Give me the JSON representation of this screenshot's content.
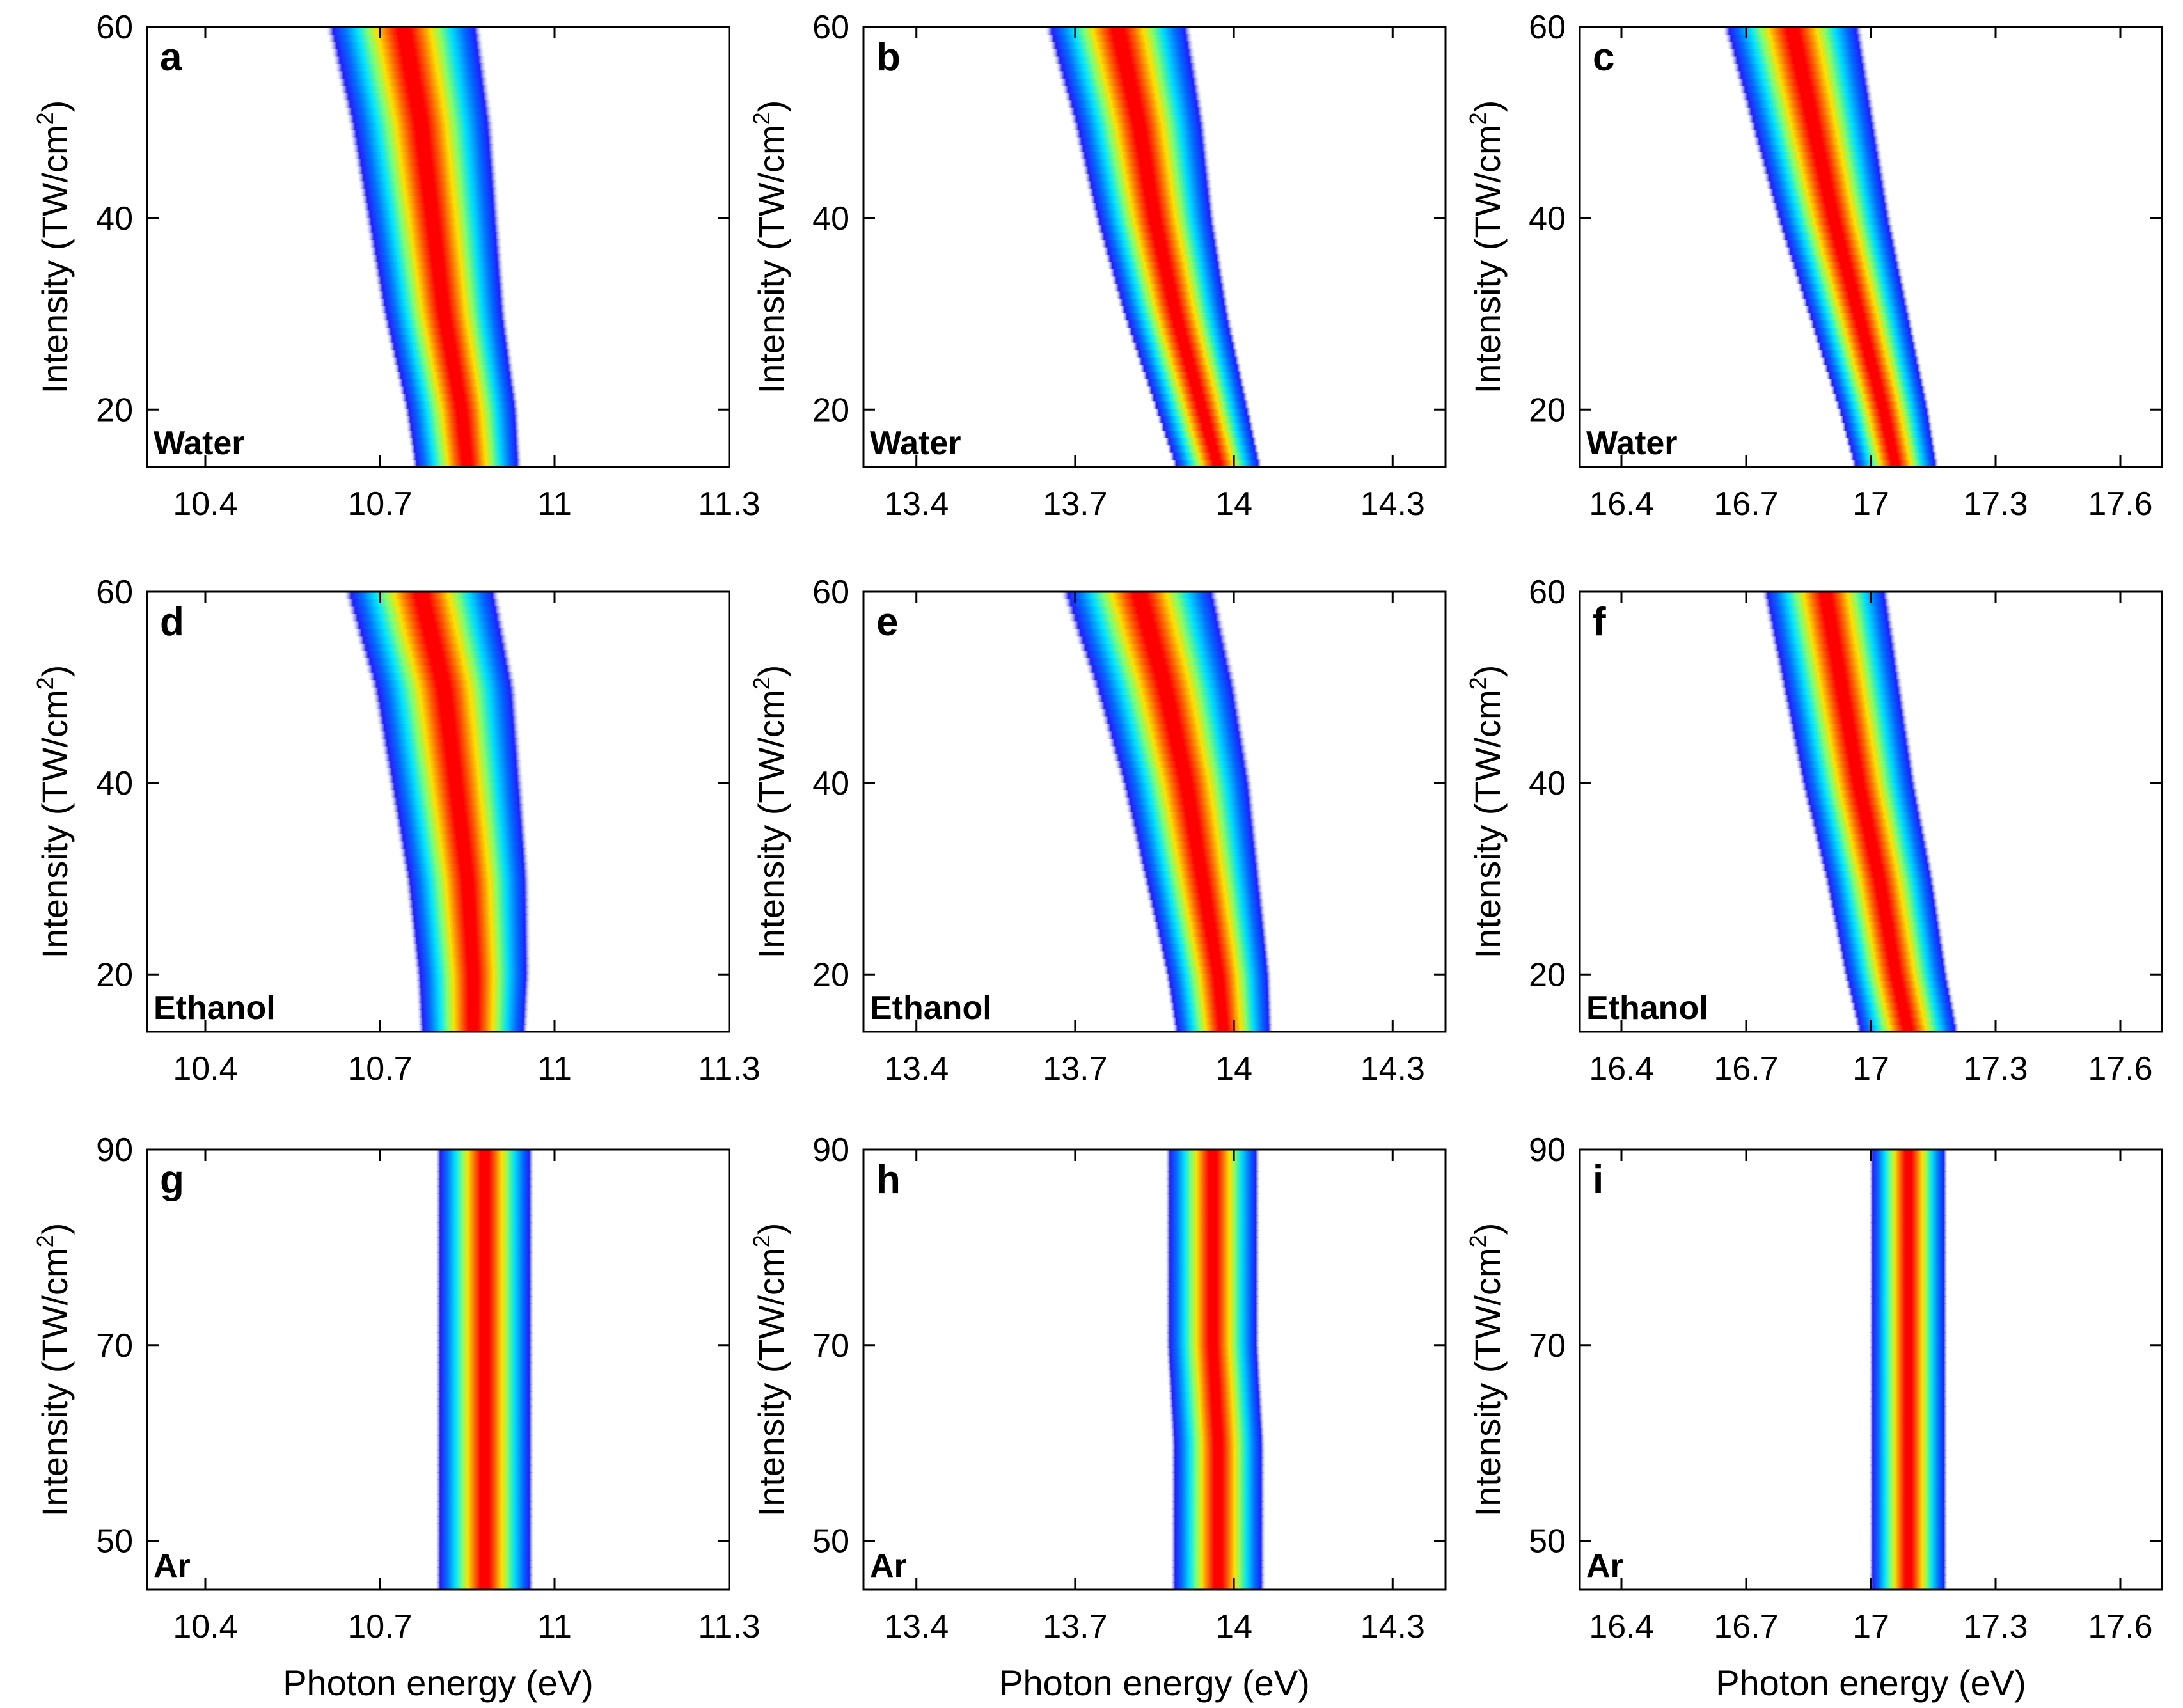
{
  "figure": {
    "type": "heatmap",
    "ylabel": "Intensity (TW/cm",
    "ylabel_sup": "2",
    "ylabel_close": ")",
    "xlabel": "Photon energy (eV)"
  },
  "chart_data": [
    {
      "type": "heatmap",
      "panel": "a",
      "sample": "Water",
      "row": 0,
      "col": 0,
      "xlim": [
        10.3,
        11.3
      ],
      "xticks": [
        "10.4",
        "10.7",
        "11",
        "11.3"
      ],
      "xtick_values": [
        10.4,
        10.7,
        11.0,
        11.3
      ],
      "ylim": [
        14,
        60
      ],
      "yticks": [
        "20",
        "40",
        "60"
      ],
      "ytick_values": [
        20,
        40,
        60
      ],
      "ridge": [
        [
          14,
          10.85
        ],
        [
          20,
          10.84
        ],
        [
          30,
          10.81
        ],
        [
          40,
          10.79
        ],
        [
          50,
          10.77
        ],
        [
          60,
          10.74
        ]
      ],
      "width": [
        [
          14,
          0.19
        ],
        [
          60,
          0.27
        ]
      ]
    },
    {
      "type": "heatmap",
      "panel": "b",
      "sample": "Water",
      "row": 0,
      "col": 1,
      "xlim": [
        13.3,
        14.4
      ],
      "xticks": [
        "13.4",
        "13.7",
        "14",
        "14.3"
      ],
      "xtick_values": [
        13.4,
        13.7,
        14.0,
        14.3
      ],
      "ylim": [
        14,
        60
      ],
      "yticks": [
        "20",
        "40",
        "60"
      ],
      "ytick_values": [
        20,
        40,
        60
      ],
      "ridge": [
        [
          14,
          13.97
        ],
        [
          20,
          13.94
        ],
        [
          30,
          13.89
        ],
        [
          40,
          13.85
        ],
        [
          50,
          13.82
        ],
        [
          60,
          13.78
        ]
      ],
      "width": [
        [
          14,
          0.17
        ],
        [
          60,
          0.28
        ]
      ]
    },
    {
      "type": "heatmap",
      "panel": "c",
      "sample": "Water",
      "row": 0,
      "col": 2,
      "xlim": [
        16.3,
        17.7
      ],
      "xticks": [
        "16.4",
        "16.7",
        "17",
        "17.3",
        "17.6"
      ],
      "xtick_values": [
        16.4,
        16.7,
        17.0,
        17.3,
        17.6
      ],
      "ylim": [
        14,
        60
      ],
      "yticks": [
        "20",
        "40",
        "60"
      ],
      "ytick_values": [
        20,
        40,
        60
      ],
      "ridge": [
        [
          14,
          17.06
        ],
        [
          20,
          17.03
        ],
        [
          30,
          16.97
        ],
        [
          40,
          16.91
        ],
        [
          50,
          16.86
        ],
        [
          60,
          16.81
        ]
      ],
      "width": [
        [
          14,
          0.21
        ],
        [
          60,
          0.34
        ]
      ]
    },
    {
      "type": "heatmap",
      "panel": "d",
      "sample": "Ethanol",
      "row": 1,
      "col": 0,
      "xlim": [
        10.3,
        11.3
      ],
      "xticks": [
        "10.4",
        "10.7",
        "11",
        "11.3"
      ],
      "xtick_values": [
        10.4,
        10.7,
        11.0,
        11.3
      ],
      "ylim": [
        14,
        60
      ],
      "yticks": [
        "20",
        "40",
        "60"
      ],
      "ytick_values": [
        20,
        40,
        60
      ],
      "ridge": [
        [
          14,
          10.86
        ],
        [
          20,
          10.86
        ],
        [
          30,
          10.85
        ],
        [
          40,
          10.83
        ],
        [
          50,
          10.81
        ],
        [
          60,
          10.77
        ]
      ],
      "width": [
        [
          14,
          0.19
        ],
        [
          60,
          0.27
        ]
      ]
    },
    {
      "type": "heatmap",
      "panel": "e",
      "sample": "Ethanol",
      "row": 1,
      "col": 1,
      "xlim": [
        13.3,
        14.4
      ],
      "xticks": [
        "13.4",
        "13.7",
        "14",
        "14.3"
      ],
      "xtick_values": [
        13.4,
        13.7,
        14.0,
        14.3
      ],
      "ylim": [
        14,
        60
      ],
      "yticks": [
        "20",
        "40",
        "60"
      ],
      "ytick_values": [
        20,
        40,
        60
      ],
      "ridge": [
        [
          14,
          13.98
        ],
        [
          20,
          13.97
        ],
        [
          30,
          13.94
        ],
        [
          40,
          13.91
        ],
        [
          50,
          13.87
        ],
        [
          60,
          13.82
        ]
      ],
      "width": [
        [
          14,
          0.19
        ],
        [
          60,
          0.3
        ]
      ]
    },
    {
      "type": "heatmap",
      "panel": "f",
      "sample": "Ethanol",
      "row": 1,
      "col": 2,
      "xlim": [
        16.3,
        17.7
      ],
      "xticks": [
        "16.4",
        "16.7",
        "17",
        "17.3",
        "17.6"
      ],
      "xtick_values": [
        16.4,
        16.7,
        17.0,
        17.3,
        17.6
      ],
      "ylim": [
        14,
        60
      ],
      "yticks": [
        "20",
        "40",
        "60"
      ],
      "ytick_values": [
        20,
        40,
        60
      ],
      "ridge": [
        [
          14,
          17.09
        ],
        [
          20,
          17.06
        ],
        [
          30,
          17.02
        ],
        [
          40,
          16.97
        ],
        [
          50,
          16.93
        ],
        [
          60,
          16.89
        ]
      ],
      "width": [
        [
          14,
          0.25
        ],
        [
          60,
          0.31
        ]
      ]
    },
    {
      "type": "heatmap",
      "panel": "g",
      "sample": "Ar",
      "row": 2,
      "col": 0,
      "xlim": [
        10.3,
        11.3
      ],
      "xticks": [
        "10.4",
        "10.7",
        "11",
        "11.3"
      ],
      "xtick_values": [
        10.4,
        10.7,
        11.0,
        11.3
      ],
      "ylim": [
        45,
        90
      ],
      "yticks": [
        "50",
        "70",
        "90"
      ],
      "ytick_values": [
        50,
        70,
        90
      ],
      "ridge": [
        [
          45,
          10.88
        ],
        [
          60,
          10.88
        ],
        [
          70,
          10.88
        ],
        [
          80,
          10.88
        ],
        [
          90,
          10.88
        ]
      ],
      "width": [
        [
          45,
          0.17
        ],
        [
          90,
          0.17
        ]
      ]
    },
    {
      "type": "heatmap",
      "panel": "h",
      "sample": "Ar",
      "row": 2,
      "col": 1,
      "xlim": [
        13.3,
        14.4
      ],
      "xticks": [
        "13.4",
        "13.7",
        "14",
        "14.3"
      ],
      "xtick_values": [
        13.4,
        13.7,
        14.0,
        14.3
      ],
      "ylim": [
        45,
        90
      ],
      "yticks": [
        "50",
        "70",
        "90"
      ],
      "ytick_values": [
        50,
        70,
        90
      ],
      "ridge": [
        [
          45,
          13.97
        ],
        [
          60,
          13.97
        ],
        [
          70,
          13.96
        ],
        [
          80,
          13.96
        ],
        [
          90,
          13.96
        ]
      ],
      "width": [
        [
          45,
          0.18
        ],
        [
          90,
          0.18
        ]
      ]
    },
    {
      "type": "heatmap",
      "panel": "i",
      "sample": "Ar",
      "row": 2,
      "col": 2,
      "xlim": [
        16.3,
        17.7
      ],
      "xticks": [
        "16.4",
        "16.7",
        "17",
        "17.3",
        "17.6"
      ],
      "xtick_values": [
        16.4,
        16.7,
        17.0,
        17.3,
        17.6
      ],
      "ylim": [
        45,
        90
      ],
      "yticks": [
        "50",
        "70",
        "90"
      ],
      "ytick_values": [
        50,
        70,
        90
      ],
      "ridge": [
        [
          45,
          17.09
        ],
        [
          60,
          17.09
        ],
        [
          70,
          17.09
        ],
        [
          80,
          17.09
        ],
        [
          90,
          17.09
        ]
      ],
      "width": [
        [
          45,
          0.19
        ],
        [
          90,
          0.19
        ]
      ]
    }
  ]
}
